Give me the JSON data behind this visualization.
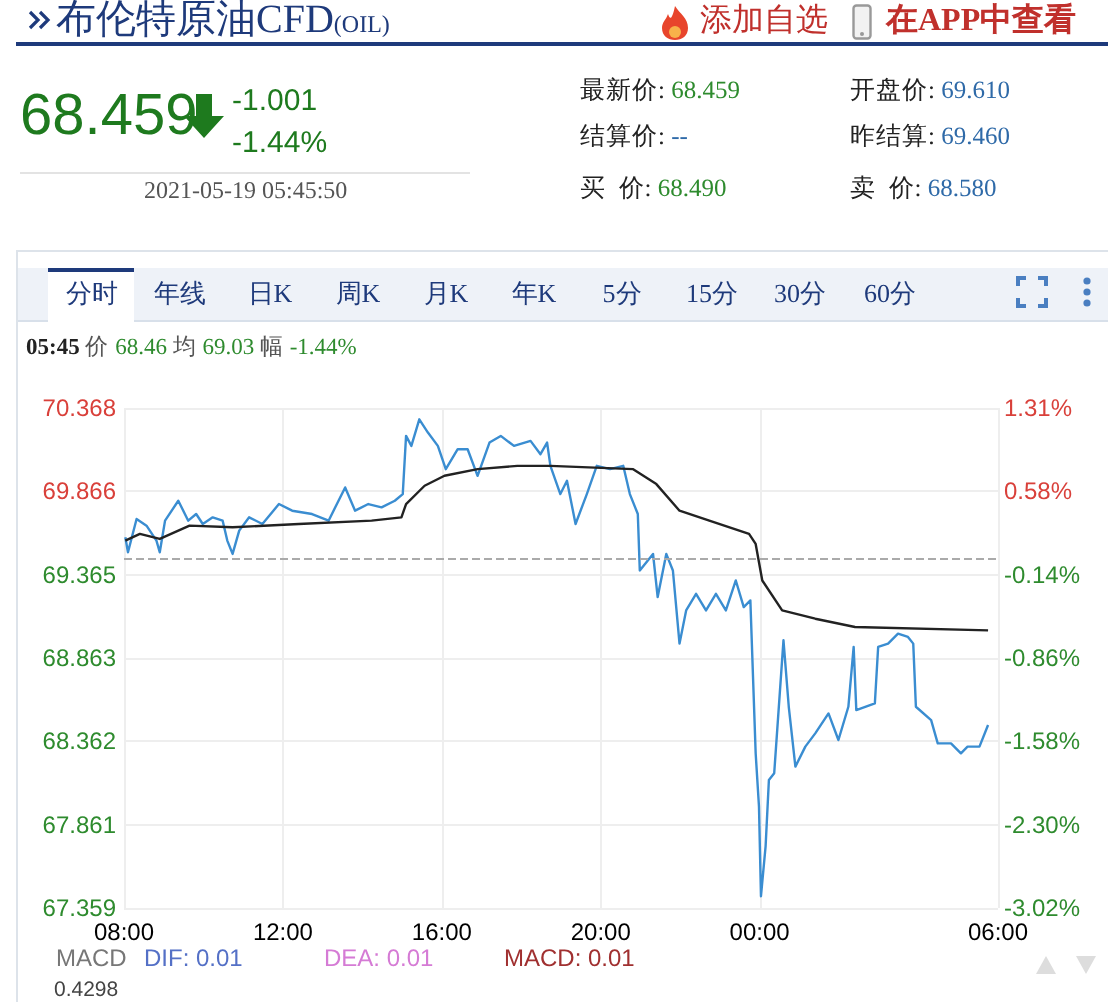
{
  "chart_data": {
    "type": "line",
    "title": "布伦特原油CFD(OIL)",
    "annotations": [
      "68.459",
      "-1.001",
      "-1.44%",
      "2021-05-19 05:45:50",
      "最新价: 68.459",
      "开盘价: 69.610",
      "结算价: --",
      "昨结算: 69.460",
      "买  价: 68.490",
      "卖  价: 68.580",
      "添加自选",
      "在APP中查看",
      "分时",
      "年线",
      "日K",
      "周K",
      "月K",
      "年K",
      "5分",
      "15分",
      "30分",
      "60分",
      "05:45 价 68.46 均 69.03 幅 -1.44%",
      "MACD",
      "DIF: 0.01",
      "DEA: 0.01",
      "MACD: 0.01",
      "0.4298"
    ],
    "series": [
      {
        "color": "#3a8dd1",
        "x": [
          "2021-05-18T08:02",
          "2021-05-18T08:06",
          "2021-05-18T08:19",
          "2021-05-18T08:34",
          "2021-05-18T08:49",
          "2021-05-18T08:54",
          "2021-05-18T09:02",
          "2021-05-18T09:22",
          "2021-05-18T09:37",
          "2021-05-18T09:49",
          "2021-05-18T09:59",
          "2021-05-18T10:14",
          "2021-05-18T10:29",
          "2021-05-18T10:36",
          "2021-05-18T10:44",
          "2021-05-18T10:54",
          "2021-05-18T11:09",
          "2021-05-18T11:29",
          "2021-05-18T11:54",
          "2021-05-18T12:14",
          "2021-05-18T12:44",
          "2021-05-18T13:09",
          "2021-05-18T13:34",
          "2021-05-18T13:49",
          "2021-05-18T14:09",
          "2021-05-18T14:29",
          "2021-05-18T14:49",
          "2021-05-18T15:01",
          "2021-05-18T15:06",
          "2021-05-18T15:14",
          "2021-05-18T15:26",
          "2021-05-18T15:39",
          "2021-05-18T15:54",
          "2021-05-18T16:06",
          "2021-05-18T16:24",
          "2021-05-18T16:39",
          "2021-05-18T16:54",
          "2021-05-18T17:12",
          "2021-05-18T17:29",
          "2021-05-18T17:49",
          "2021-05-18T18:14",
          "2021-05-18T18:29",
          "2021-05-18T18:39",
          "2021-05-18T18:44",
          "2021-05-18T18:59",
          "2021-05-18T19:09",
          "2021-05-18T19:22",
          "2021-05-18T19:39",
          "2021-05-18T19:54",
          "2021-05-18T20:14",
          "2021-05-18T20:34",
          "2021-05-18T20:44",
          "2021-05-18T20:56",
          "2021-05-18T20:59",
          "2021-05-18T21:19",
          "2021-05-18T21:26",
          "2021-05-18T21:39",
          "2021-05-18T21:49",
          "2021-05-18T21:59",
          "2021-05-18T22:09",
          "2021-05-18T22:24",
          "2021-05-18T22:39",
          "2021-05-18T22:54",
          "2021-05-18T23:09",
          "2021-05-18T23:24",
          "2021-05-18T23:36",
          "2021-05-18T23:46",
          "2021-05-18T23:54",
          "2021-05-18T23:59",
          "2021-05-19T00:02",
          "2021-05-19T00:09",
          "2021-05-19T00:14",
          "2021-05-19T00:22",
          "2021-05-19T00:36",
          "2021-05-19T00:44",
          "2021-05-19T00:54",
          "2021-05-19T01:09",
          "2021-05-19T01:24",
          "2021-05-19T01:44",
          "2021-05-19T01:59",
          "2021-05-19T02:14",
          "2021-05-19T02:22",
          "2021-05-19T02:26",
          "2021-05-19T02:54",
          "2021-05-19T02:59",
          "2021-05-19T03:14",
          "2021-05-19T03:29",
          "2021-05-19T03:44",
          "2021-05-19T03:52",
          "2021-05-19T03:56",
          "2021-05-19T04:19",
          "2021-05-19T04:29",
          "2021-05-19T04:49",
          "2021-05-19T05:04",
          "2021-05-19T05:14",
          "2021-05-19T05:32",
          "2021-05-19T05:45"
        ],
        "values": [
          69.59,
          69.5,
          69.7,
          69.66,
          69.57,
          69.5,
          69.69,
          69.81,
          69.69,
          69.73,
          69.67,
          69.71,
          69.69,
          69.57,
          69.49,
          69.63,
          69.71,
          69.67,
          69.79,
          69.75,
          69.73,
          69.69,
          69.89,
          69.75,
          69.79,
          69.77,
          69.81,
          69.85,
          70.2,
          70.14,
          70.3,
          70.22,
          70.14,
          70.0,
          70.12,
          70.12,
          69.96,
          70.16,
          70.2,
          70.14,
          70.17,
          70.09,
          70.16,
          70.02,
          69.85,
          69.93,
          69.67,
          69.85,
          70.02,
          70.0,
          70.02,
          69.85,
          69.73,
          69.39,
          69.49,
          69.23,
          69.49,
          69.39,
          68.95,
          69.15,
          69.25,
          69.15,
          69.25,
          69.15,
          69.33,
          69.17,
          69.21,
          68.29,
          67.97,
          67.43,
          67.73,
          68.13,
          68.17,
          68.97,
          68.57,
          68.21,
          68.33,
          68.41,
          68.53,
          68.37,
          68.57,
          68.93,
          68.55,
          68.59,
          68.93,
          68.95,
          69.01,
          68.99,
          68.95,
          68.57,
          68.49,
          68.35,
          68.35,
          68.29,
          68.33,
          68.33,
          68.46
        ]
      },
      {
        "color": "#222222",
        "x": [
          "2021-05-18T08:02",
          "2021-05-18T08:24",
          "2021-05-18T08:54",
          "2021-05-18T09:39",
          "2021-05-18T10:44",
          "2021-05-18T12:24",
          "2021-05-18T14:14",
          "2021-05-18T14:59",
          "2021-05-18T15:06",
          "2021-05-18T15:34",
          "2021-05-18T16:04",
          "2021-05-18T16:54",
          "2021-05-18T17:54",
          "2021-05-18T18:44",
          "2021-05-18T20:49",
          "2021-05-18T21:24",
          "2021-05-18T21:59",
          "2021-05-18T22:44",
          "2021-05-18T23:44",
          "2021-05-18T23:54",
          "2021-05-19T00:04",
          "2021-05-19T00:34",
          "2021-05-19T01:24",
          "2021-05-19T02:24",
          "2021-05-19T05:45"
        ],
        "values": [
          69.57,
          69.61,
          69.58,
          69.66,
          69.65,
          69.67,
          69.69,
          69.71,
          69.79,
          69.9,
          69.96,
          70.0,
          70.02,
          70.02,
          70.0,
          69.91,
          69.75,
          69.69,
          69.61,
          69.55,
          69.33,
          69.15,
          69.1,
          69.05,
          69.03
        ]
      }
    ],
    "xlim": [
      "2021-05-18T08:00",
      "2021-05-19T06:00"
    ],
    "xticks": [
      {
        "value": "2021-05-18T08:00",
        "label": "08:00"
      },
      {
        "value": "2021-05-18T12:00",
        "label": "12:00"
      },
      {
        "value": "2021-05-18T16:00",
        "label": "16:00"
      },
      {
        "value": "2021-05-18T20:00",
        "label": "20:00"
      },
      {
        "value": "2021-05-19T00:00",
        "label": "00:00"
      },
      {
        "value": "2021-05-19T06:00",
        "label": "06:00"
      }
    ],
    "ylim": [
      67.359,
      70.368
    ],
    "yticks": [
      67.359,
      67.861,
      68.362,
      68.863,
      69.365,
      69.866,
      70.368
    ],
    "y2lim": [
      -3.025,
      1.307
    ],
    "y2ticks": [
      {
        "value": -3.025,
        "label": "-3.02%"
      },
      {
        "value": -2.302,
        "label": "-2.30%"
      },
      {
        "value": -1.581,
        "label": "-1.58%"
      },
      {
        "value": -0.859,
        "label": "-0.86%"
      },
      {
        "value": -0.137,
        "label": "-0.14%"
      },
      {
        "value": 0.585,
        "label": "0.58%"
      },
      {
        "value": 1.307,
        "label": "1.31%"
      }
    ],
    "ref_lines": [
      {
        "axis": "y",
        "value": 69.46,
        "color": "#aaaaaa",
        "line_style": "dashed"
      }
    ],
    "grid": true,
    "marker": "none"
  }
}
